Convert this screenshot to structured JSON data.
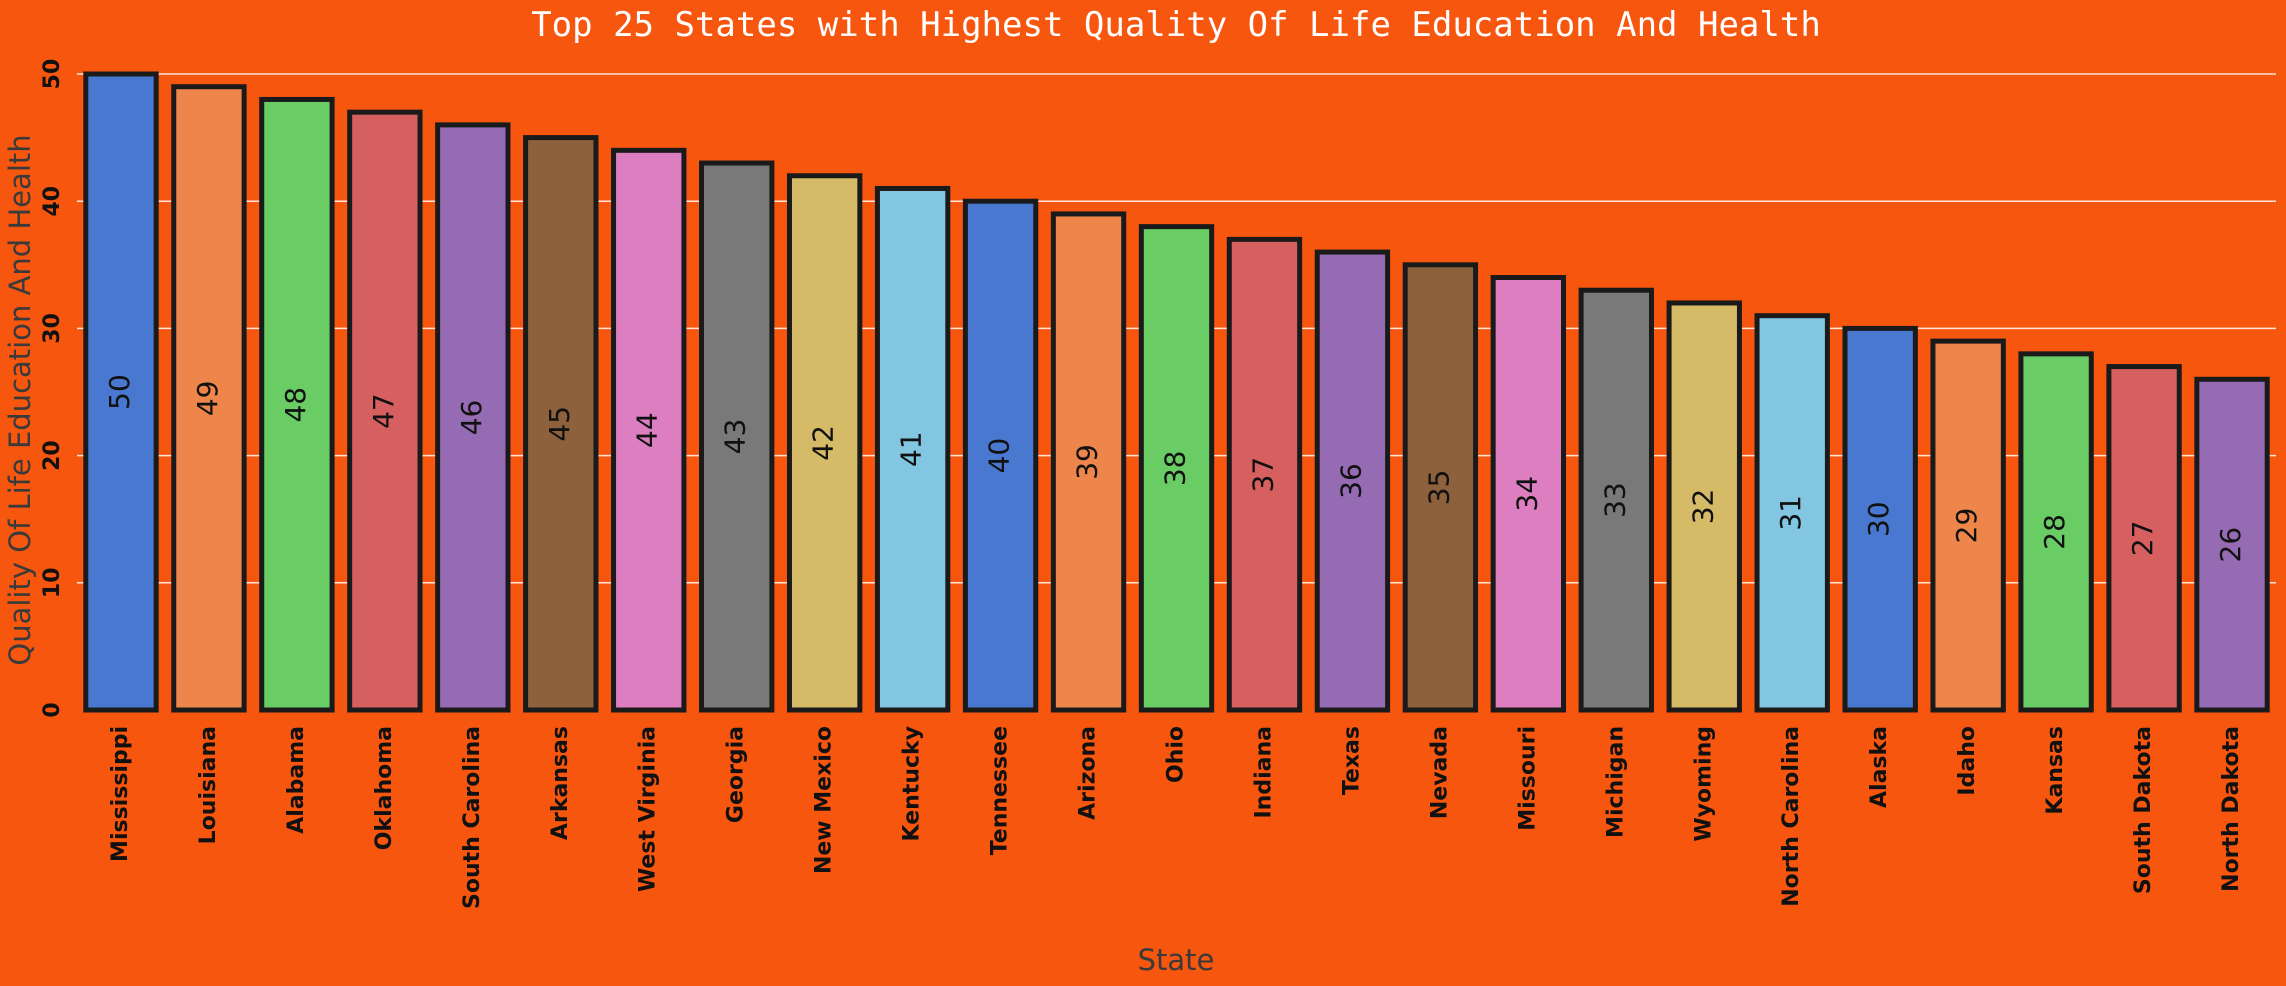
{
  "chart_data": {
    "type": "bar",
    "title": "Top 25 States with Highest Quality Of Life Education And Health",
    "xlabel": "State",
    "ylabel": "Quality Of Life Education And Health",
    "ylim": [
      0,
      50
    ],
    "yticks": [
      "0",
      "10",
      "20",
      "30",
      "40",
      "50"
    ],
    "grid": true,
    "categories": [
      "Mississippi",
      "Louisiana",
      "Alabama",
      "Oklahoma",
      "South Carolina",
      "Arkansas",
      "West Virginia",
      "Georgia",
      "New Mexico",
      "Kentucky",
      "Tennessee",
      "Arizona",
      "Ohio",
      "Indiana",
      "Texas",
      "Nevada",
      "Missouri",
      "Michigan",
      "Wyoming",
      "North Carolina",
      "Alaska",
      "Idaho",
      "Kansas",
      "South Dakota",
      "North Dakota"
    ],
    "values": [
      50,
      49,
      48,
      47,
      46,
      45,
      44,
      43,
      42,
      41,
      40,
      39,
      38,
      37,
      36,
      35,
      34,
      33,
      32,
      31,
      30,
      29,
      28,
      27,
      26
    ],
    "colors": [
      "#4878D0",
      "#EE854A",
      "#6ACC64",
      "#D65F5F",
      "#956CB4",
      "#8C613C",
      "#DC7EC0",
      "#797979",
      "#D5BB67",
      "#82C6E2"
    ],
    "background": "#F7560F"
  }
}
